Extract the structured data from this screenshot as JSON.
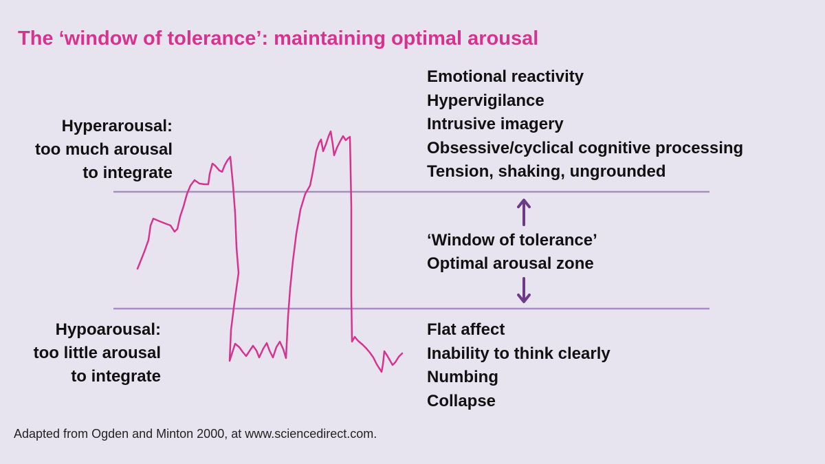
{
  "title": "The ‘window of tolerance’: maintaining optimal arousal",
  "hyperarousal": {
    "lines": [
      "Hyperarousal:",
      "too much arousal",
      "to integrate"
    ],
    "symptoms": [
      "Emotional reactivity",
      "Hypervigilance",
      "Intrusive imagery",
      "Obsessive/cyclical cognitive processing",
      "Tension, shaking, ungrounded"
    ]
  },
  "window": {
    "lines": [
      "‘Window of tolerance’",
      "Optimal arousal zone"
    ]
  },
  "hypoarousal": {
    "lines": [
      "Hypoarousal:",
      "too little arousal",
      "to integrate"
    ],
    "symptoms": [
      "Flat affect",
      "Inability to think clearly",
      "Numbing",
      "Collapse"
    ]
  },
  "source": "Adapted from Ogden and Minton 2000, at www.sciencedirect.com.",
  "colors": {
    "title": "#d6338f",
    "curve": "#d6338f",
    "boundary": "#a88cc4",
    "arrow": "#6b3a88",
    "background": "#e8e4ef"
  }
}
